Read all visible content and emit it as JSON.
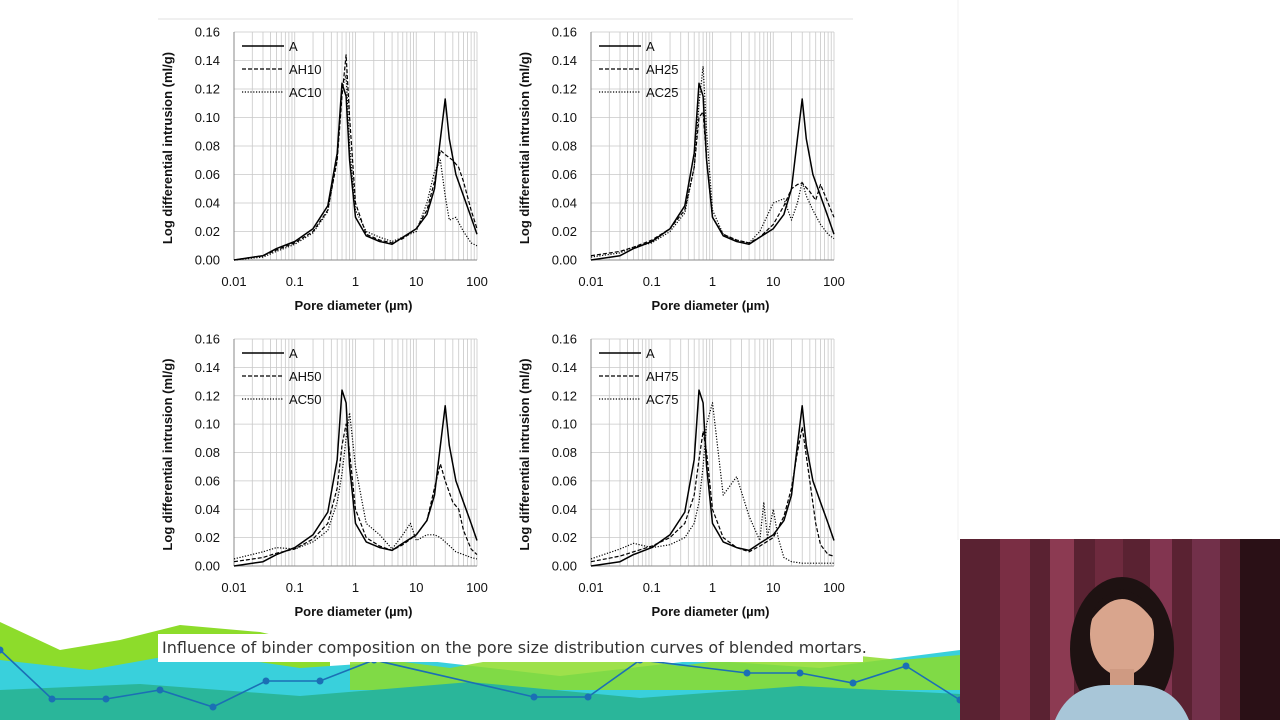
{
  "caption": "Influence of binder composition on the pore size distribution curves of blended mortars.",
  "colors": {
    "bg_green": "#8ddc2b",
    "bg_cyan": "#39d0dc",
    "bg_teal": "#2ab69a",
    "line_blue": "#1b6fb5"
  },
  "video": {
    "icon": "presenter-webcam"
  },
  "chart_data": [
    {
      "type": "line",
      "xlabel": "Pore diameter (µm)",
      "ylabel": "Log differential intrusion (ml/g)",
      "x_scale": "log",
      "xlim": [
        0.01,
        100
      ],
      "ylim": [
        0,
        0.16
      ],
      "x_ticks": [
        "0.01",
        "0.1",
        "1",
        "10",
        "100"
      ],
      "y_ticks": [
        "0.00",
        "0.02",
        "0.04",
        "0.06",
        "0.08",
        "0.10",
        "0.12",
        "0.14",
        "0.16"
      ],
      "legend_position": "top-left",
      "series": [
        {
          "name": "A",
          "style": "solid",
          "x": [
            0.01,
            0.03,
            0.05,
            0.1,
            0.2,
            0.35,
            0.5,
            0.6,
            0.7,
            0.8,
            1,
            1.5,
            2.5,
            4,
            6,
            10,
            15,
            20,
            25,
            30,
            35,
            45,
            60,
            80,
            100
          ],
          "values": [
            0,
            0.003,
            0.008,
            0.013,
            0.022,
            0.038,
            0.075,
            0.124,
            0.115,
            0.07,
            0.03,
            0.017,
            0.013,
            0.011,
            0.016,
            0.022,
            0.032,
            0.05,
            0.085,
            0.113,
            0.085,
            0.06,
            0.045,
            0.03,
            0.018
          ]
        },
        {
          "name": "AH10",
          "style": "dashed",
          "x": [
            0.01,
            0.03,
            0.05,
            0.1,
            0.2,
            0.35,
            0.5,
            0.6,
            0.7,
            0.8,
            1,
            1.5,
            2.5,
            4,
            6,
            10,
            15,
            20,
            25,
            30,
            40,
            50,
            60,
            80,
            100
          ],
          "values": [
            0,
            0.003,
            0.007,
            0.012,
            0.02,
            0.035,
            0.07,
            0.115,
            0.144,
            0.1,
            0.04,
            0.018,
            0.014,
            0.012,
            0.015,
            0.022,
            0.035,
            0.055,
            0.077,
            0.074,
            0.07,
            0.065,
            0.055,
            0.035,
            0.022
          ]
        },
        {
          "name": "AC10",
          "style": "dotted",
          "x": [
            0.01,
            0.03,
            0.05,
            0.1,
            0.2,
            0.35,
            0.5,
            0.6,
            0.7,
            0.8,
            1,
            1.5,
            2.5,
            4,
            6,
            10,
            15,
            20,
            25,
            30,
            35,
            45,
            60,
            80,
            100
          ],
          "values": [
            0,
            0.002,
            0.006,
            0.011,
            0.019,
            0.034,
            0.072,
            0.12,
            0.13,
            0.08,
            0.035,
            0.02,
            0.016,
            0.013,
            0.016,
            0.02,
            0.04,
            0.062,
            0.07,
            0.045,
            0.028,
            0.03,
            0.02,
            0.012,
            0.01
          ]
        }
      ]
    },
    {
      "type": "line",
      "xlabel": "Pore diameter (µm)",
      "ylabel": "Log differential intrusion (ml/g)",
      "x_scale": "log",
      "xlim": [
        0.01,
        100
      ],
      "ylim": [
        0,
        0.16
      ],
      "x_ticks": [
        "0.01",
        "0.1",
        "1",
        "10",
        "100"
      ],
      "y_ticks": [
        "0.00",
        "0.02",
        "0.04",
        "0.06",
        "0.08",
        "0.10",
        "0.12",
        "0.14",
        "0.16"
      ],
      "legend_position": "top-left",
      "series": [
        {
          "name": "A",
          "style": "solid",
          "x": [
            0.01,
            0.03,
            0.05,
            0.1,
            0.2,
            0.35,
            0.5,
            0.6,
            0.7,
            0.8,
            1,
            1.5,
            2.5,
            4,
            6,
            10,
            15,
            20,
            25,
            30,
            35,
            45,
            60,
            80,
            100
          ],
          "values": [
            0,
            0.003,
            0.008,
            0.013,
            0.022,
            0.038,
            0.075,
            0.124,
            0.115,
            0.07,
            0.03,
            0.017,
            0.013,
            0.011,
            0.016,
            0.022,
            0.032,
            0.05,
            0.085,
            0.113,
            0.085,
            0.06,
            0.045,
            0.03,
            0.018
          ]
        },
        {
          "name": "AH25",
          "style": "dashed",
          "x": [
            0.01,
            0.03,
            0.05,
            0.1,
            0.2,
            0.35,
            0.5,
            0.6,
            0.7,
            0.8,
            1,
            1.5,
            2.5,
            4,
            6,
            10,
            15,
            20,
            25,
            30,
            40,
            50,
            60,
            80,
            100
          ],
          "values": [
            0.003,
            0.006,
            0.009,
            0.014,
            0.022,
            0.035,
            0.065,
            0.1,
            0.104,
            0.07,
            0.03,
            0.018,
            0.014,
            0.012,
            0.016,
            0.025,
            0.038,
            0.05,
            0.053,
            0.054,
            0.048,
            0.042,
            0.053,
            0.04,
            0.03
          ]
        },
        {
          "name": "AC25",
          "style": "dotted",
          "x": [
            0.01,
            0.03,
            0.05,
            0.1,
            0.2,
            0.35,
            0.5,
            0.6,
            0.7,
            0.8,
            1,
            1.5,
            2.5,
            4,
            6,
            10,
            15,
            20,
            25,
            30,
            35,
            45,
            60,
            80,
            100
          ],
          "values": [
            0.002,
            0.005,
            0.009,
            0.012,
            0.02,
            0.033,
            0.065,
            0.11,
            0.136,
            0.09,
            0.035,
            0.018,
            0.014,
            0.012,
            0.02,
            0.04,
            0.043,
            0.028,
            0.04,
            0.055,
            0.045,
            0.035,
            0.025,
            0.018,
            0.015
          ]
        }
      ]
    },
    {
      "type": "line",
      "xlabel": "Pore diameter (µm)",
      "ylabel": "Log differential intrusion (ml/g)",
      "x_scale": "log",
      "xlim": [
        0.01,
        100
      ],
      "ylim": [
        0,
        0.16
      ],
      "x_ticks": [
        "0.01",
        "0.1",
        "1",
        "10",
        "100"
      ],
      "y_ticks": [
        "0.00",
        "0.02",
        "0.04",
        "0.06",
        "0.08",
        "0.10",
        "0.12",
        "0.14",
        "0.16"
      ],
      "legend_position": "top-left",
      "series": [
        {
          "name": "A",
          "style": "solid",
          "x": [
            0.01,
            0.03,
            0.05,
            0.1,
            0.2,
            0.35,
            0.5,
            0.6,
            0.7,
            0.8,
            1,
            1.5,
            2.5,
            4,
            6,
            10,
            15,
            20,
            25,
            30,
            35,
            45,
            60,
            80,
            100
          ],
          "values": [
            0,
            0.003,
            0.008,
            0.013,
            0.022,
            0.038,
            0.075,
            0.124,
            0.115,
            0.07,
            0.03,
            0.017,
            0.013,
            0.011,
            0.016,
            0.022,
            0.032,
            0.05,
            0.085,
            0.113,
            0.085,
            0.06,
            0.045,
            0.03,
            0.018
          ]
        },
        {
          "name": "AH50",
          "style": "dashed",
          "x": [
            0.01,
            0.03,
            0.05,
            0.1,
            0.2,
            0.35,
            0.5,
            0.6,
            0.7,
            0.8,
            1,
            1.5,
            2.5,
            4,
            6,
            10,
            15,
            20,
            25,
            30,
            40,
            50,
            60,
            80,
            100
          ],
          "values": [
            0.003,
            0.006,
            0.009,
            0.012,
            0.019,
            0.03,
            0.055,
            0.085,
            0.1,
            0.08,
            0.04,
            0.02,
            0.014,
            0.011,
            0.015,
            0.022,
            0.032,
            0.055,
            0.072,
            0.06,
            0.045,
            0.04,
            0.025,
            0.012,
            0.008
          ]
        },
        {
          "name": "AC50",
          "style": "dotted",
          "x": [
            0.01,
            0.03,
            0.05,
            0.1,
            0.2,
            0.35,
            0.5,
            0.6,
            0.7,
            0.8,
            1,
            1.5,
            2.5,
            4,
            6,
            8,
            10,
            15,
            20,
            25,
            30,
            45,
            60,
            80,
            100
          ],
          "values": [
            0.005,
            0.01,
            0.013,
            0.012,
            0.017,
            0.025,
            0.045,
            0.065,
            0.09,
            0.108,
            0.07,
            0.03,
            0.022,
            0.012,
            0.022,
            0.03,
            0.018,
            0.022,
            0.022,
            0.02,
            0.017,
            0.01,
            0.008,
            0.006,
            0.005
          ]
        }
      ]
    },
    {
      "type": "line",
      "xlabel": "Pore diameter (µm)",
      "ylabel": "Log differential intrusion (ml/g)",
      "x_scale": "log",
      "xlim": [
        0.01,
        100
      ],
      "ylim": [
        0,
        0.16
      ],
      "x_ticks": [
        "0.01",
        "0.1",
        "1",
        "10",
        "100"
      ],
      "y_ticks": [
        "0.00",
        "0.02",
        "0.04",
        "0.06",
        "0.08",
        "0.10",
        "0.12",
        "0.14",
        "0.16"
      ],
      "legend_position": "top-left",
      "series": [
        {
          "name": "A",
          "style": "solid",
          "x": [
            0.01,
            0.03,
            0.05,
            0.1,
            0.2,
            0.35,
            0.5,
            0.6,
            0.7,
            0.8,
            1,
            1.5,
            2.5,
            4,
            6,
            10,
            15,
            20,
            25,
            30,
            35,
            45,
            60,
            80,
            100
          ],
          "values": [
            0,
            0.003,
            0.008,
            0.013,
            0.022,
            0.038,
            0.075,
            0.124,
            0.115,
            0.07,
            0.03,
            0.017,
            0.013,
            0.011,
            0.016,
            0.022,
            0.032,
            0.05,
            0.085,
            0.113,
            0.085,
            0.06,
            0.045,
            0.03,
            0.018
          ]
        },
        {
          "name": "AH75",
          "style": "dashed",
          "x": [
            0.01,
            0.03,
            0.05,
            0.1,
            0.2,
            0.35,
            0.5,
            0.6,
            0.7,
            0.8,
            1,
            1.5,
            2.5,
            4,
            6,
            10,
            15,
            20,
            25,
            30,
            40,
            50,
            60,
            80,
            100
          ],
          "values": [
            0.003,
            0.007,
            0.01,
            0.014,
            0.02,
            0.03,
            0.05,
            0.075,
            0.095,
            0.08,
            0.04,
            0.02,
            0.013,
            0.01,
            0.014,
            0.02,
            0.035,
            0.055,
            0.08,
            0.098,
            0.06,
            0.03,
            0.015,
            0.008,
            0.007
          ]
        },
        {
          "name": "AC75",
          "style": "dotted",
          "x": [
            0.01,
            0.03,
            0.05,
            0.1,
            0.2,
            0.35,
            0.5,
            0.6,
            0.7,
            0.8,
            1,
            1.5,
            2.5,
            4,
            6,
            7,
            8,
            10,
            12,
            15,
            20,
            30,
            45,
            60,
            100
          ],
          "values": [
            0.005,
            0.012,
            0.016,
            0.013,
            0.015,
            0.02,
            0.03,
            0.045,
            0.07,
            0.1,
            0.115,
            0.05,
            0.063,
            0.035,
            0.018,
            0.045,
            0.02,
            0.04,
            0.02,
            0.006,
            0.003,
            0.002,
            0.002,
            0.002,
            0.002
          ]
        }
      ]
    }
  ]
}
